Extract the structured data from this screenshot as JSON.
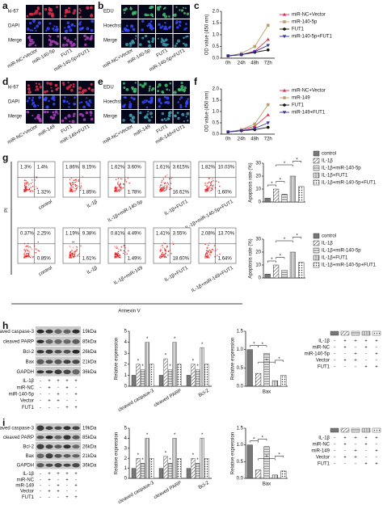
{
  "panel_labels": [
    "a",
    "b",
    "c",
    "d",
    "e",
    "f",
    "g",
    "h",
    "i"
  ],
  "micrographs": [
    {
      "rows": [
        "ki-67",
        "DAPI",
        "Merge"
      ],
      "colors": [
        "#e0304a",
        "#3a4bff",
        "#b040c0"
      ],
      "columns": [
        "miR-NC+Vector",
        "miR-140-5p",
        "FUT1",
        "miR-140-5p+FUT1"
      ]
    },
    {
      "rows": [
        "EDU",
        "Hoechst",
        "Merge"
      ],
      "colors": [
        "#40c070",
        "#3a4bff",
        "#40a0b0"
      ],
      "columns": [
        "miR-NC+Vector",
        "miR-140-5p",
        "FUT1",
        "miR-140-5p+FUT1"
      ]
    },
    {
      "rows": [
        "ki-67",
        "DAPI",
        "Merge"
      ],
      "colors": [
        "#e0304a",
        "#3a4bff",
        "#b040c0"
      ],
      "columns": [
        "miR-NC+Vector",
        "miR-149",
        "FUT1",
        "miR-149+FUT1"
      ]
    },
    {
      "rows": [
        "EDU",
        "Hoechst",
        "Merge"
      ],
      "colors": [
        "#40c070",
        "#3a4bff",
        "#40a0b0"
      ],
      "columns": [
        "miR-NC+Vector",
        "miR-149",
        "FUT1",
        "miR-149+FUT1"
      ]
    }
  ],
  "line_charts": [
    {
      "type": "line",
      "y_label": "OD value (450 nm)",
      "categories": [
        "0h",
        "24h",
        "48h",
        "72h"
      ],
      "ylim": [
        0,
        2
      ],
      "yticks": [
        {
          "value": 0,
          "label": "0.0"
        },
        0.5,
        {
          "value": 1,
          "label": "1.0"
        },
        1.5,
        {
          "value": 2,
          "label": "2.0"
        }
      ],
      "series": [
        {
          "name": "miR-NC+Vector",
          "color": "#e0304a",
          "marker": "triangle",
          "values": [
            0.1,
            0.15,
            0.3,
            0.8
          ]
        },
        {
          "name": "miR-140-5p",
          "color": "#b8a070",
          "marker": "square",
          "values": [
            0.1,
            0.2,
            0.5,
            1.4
          ]
        },
        {
          "name": "FUT1",
          "color": "#111111",
          "marker": "circle",
          "values": [
            0.1,
            0.15,
            0.25,
            0.35
          ]
        },
        {
          "name": "miR-140-5p+FUT1",
          "color": "#3030a0",
          "marker": "triangle-down",
          "values": [
            0.1,
            0.15,
            0.28,
            0.55
          ]
        }
      ]
    },
    {
      "type": "line",
      "y_label": "OD value (450 nm)",
      "categories": [
        "0h",
        "24h",
        "48h",
        "72h"
      ],
      "ylim": [
        0,
        2
      ],
      "yticks": [
        {
          "value": 0,
          "label": "0.0"
        },
        0.5,
        {
          "value": 1,
          "label": "1.0"
        },
        1.5,
        {
          "value": 2,
          "label": "2.0"
        }
      ],
      "series": [
        {
          "name": "miR-NC+Vector",
          "color": "#e0304a",
          "marker": "triangle",
          "values": [
            0.1,
            0.18,
            0.35,
            0.85
          ]
        },
        {
          "name": "miR-149",
          "color": "#b8a070",
          "marker": "square",
          "values": [
            0.1,
            0.2,
            0.45,
            1.3
          ]
        },
        {
          "name": "FUT1",
          "color": "#111111",
          "marker": "circle",
          "values": [
            0.1,
            0.15,
            0.2,
            0.3
          ]
        },
        {
          "name": "miR-149+FUT1",
          "color": "#3030a0",
          "marker": "triangle-down",
          "values": [
            0.1,
            0.15,
            0.25,
            0.5
          ]
        }
      ]
    }
  ],
  "flow": {
    "y_label": "PI",
    "x_label": "Annexin V",
    "rows": [
      [
        {
          "label": "control",
          "quadrants": [
            "1.3%",
            "1.4%",
            "1.32%"
          ]
        },
        {
          "label": "IL-1β",
          "quadrants": [
            "1.86%",
            "8.15%",
            "1.85%"
          ]
        },
        {
          "label": "IL-1β+miR-140-5p",
          "quadrants": [
            "1.62%",
            "3.60%",
            "1.78%"
          ]
        },
        {
          "label": "IL-1β+FUT1",
          "quadrants": [
            "1.61%",
            "3.615%",
            "16.62%"
          ]
        },
        {
          "label": "IL-1β+miR-140-5p+FUT1",
          "quadrants": [
            "1.82%",
            "10.03%",
            "1.60%"
          ]
        }
      ],
      [
        {
          "label": "control",
          "quadrants": [
            "0.37%",
            "2.25%",
            "0.85%"
          ]
        },
        {
          "label": "IL-1β",
          "quadrants": [
            "1.19%",
            "9.38%",
            "1.61%"
          ]
        },
        {
          "label": "IL-1β+miR-149",
          "quadrants": [
            "0.81%",
            "4.49%",
            "1.49%"
          ]
        },
        {
          "label": "IL-1β+FUT1",
          "quadrants": [
            "1.41%",
            "3.55%",
            "18.60%"
          ]
        },
        {
          "label": "IL-1β+miR-149+FUT1",
          "quadrants": [
            "2.08%",
            "13.70%",
            "1.64%"
          ]
        }
      ]
    ]
  },
  "apoptosis_charts": [
    {
      "type": "bar",
      "y_label": "Apoptosis rate (%)",
      "categories": [
        "control",
        "IL-1β",
        "IL-1β+miR-140-5p",
        "IL-1β+FUT1",
        "IL-1β+miR-140-5p+FUT1"
      ],
      "values": [
        3,
        10,
        6,
        20,
        12
      ],
      "fills": [
        "#777777",
        "url(#p-diag)",
        "url(#p-hz)",
        "url(#p-vt)",
        "url(#p-dot)"
      ],
      "ylim": [
        0,
        30
      ],
      "yticks": [
        0,
        10,
        20,
        30
      ],
      "stars": [
        "*",
        "*",
        "*",
        "*"
      ]
    },
    {
      "type": "bar",
      "y_label": "Apoptosis rate (%)",
      "categories": [
        "control",
        "IL-1β",
        "IL-1β+miR-140-5p",
        "IL-1β+FUT1",
        "IL-1β+miR-140-5p+FUT1"
      ],
      "values": [
        3,
        10,
        6,
        20,
        12
      ],
      "fills": [
        "#777777",
        "url(#p-diag)",
        "url(#p-hz)",
        "url(#p-vt)",
        "url(#p-dot)"
      ],
      "ylim": [
        0,
        30
      ],
      "yticks": [
        0,
        10,
        20,
        30
      ],
      "stars": [
        "*",
        "*",
        "*",
        "*"
      ]
    }
  ],
  "blots": [
    {
      "proteins": [
        "cleaved caspase-3",
        "cleaved PARP",
        "Bcl-2",
        "Bax",
        "GAPDH"
      ],
      "sizes": [
        "19kDa",
        "85kDa",
        "26kDa",
        "21kDa",
        "36kDa"
      ],
      "conditions": [
        {
          "name": "IL-1β",
          "signs": [
            "-",
            "+",
            "+",
            "+",
            "+"
          ]
        },
        {
          "name": "miR-NC",
          "signs": [
            "-",
            "+",
            "-",
            "+",
            "-"
          ]
        },
        {
          "name": "miR-140-5p",
          "signs": [
            "-",
            "-",
            "+",
            "-",
            "+"
          ]
        },
        {
          "name": "Vector",
          "signs": [
            "-",
            "+",
            "+",
            "-",
            "-"
          ]
        },
        {
          "name": "FUT1",
          "signs": [
            "-",
            "-",
            "-",
            "+",
            "+"
          ]
        }
      ]
    },
    {
      "proteins": [
        "cleaved caspase-3",
        "cleaved PARP",
        "Bcl-2",
        "Bax",
        "GAPDH"
      ],
      "sizes": [
        "19kDa",
        "85kDa",
        "26kDa",
        "21kDa",
        "36kDa"
      ],
      "conditions": [
        {
          "name": "IL-1β",
          "signs": [
            "-",
            "+",
            "+",
            "+",
            "+"
          ]
        },
        {
          "name": "miR-NC",
          "signs": [
            "-",
            "+",
            "-",
            "+",
            "-"
          ]
        },
        {
          "name": "miR-149",
          "signs": [
            "-",
            "-",
            "+",
            "-",
            "+"
          ]
        },
        {
          "name": "Vector",
          "signs": [
            "-",
            "+",
            "+",
            "-",
            "-"
          ]
        },
        {
          "name": "FUT1",
          "signs": [
            "-",
            "-",
            "-",
            "+",
            "+"
          ]
        }
      ]
    }
  ],
  "expression_charts": [
    {
      "type": "grouped_bar",
      "y_label": "Relative expression",
      "groups": [
        "cleaved caspase-3",
        "cleaved PARP",
        "Bcl-2"
      ],
      "values": [
        [
          1,
          2,
          1.5,
          4,
          2
        ],
        [
          1,
          2.5,
          1.5,
          4,
          2
        ],
        [
          1,
          2,
          1.5,
          3.5,
          2
        ]
      ],
      "fills": [
        "#777777",
        "url(#p-diag)",
        "url(#p-hz)",
        "url(#p-vt)",
        "url(#p-dot)"
      ],
      "ylim": [
        0,
        5
      ],
      "yticks": [
        0,
        1,
        2,
        3,
        4,
        5
      ],
      "stars": [
        "*",
        "*",
        "*"
      ]
    },
    {
      "type": "bar",
      "y_label": "Relative expression",
      "label": "Bax",
      "values": [
        1,
        0.35,
        0.9,
        0.15,
        0.3
      ],
      "fills": [
        "#777777",
        "url(#p-diag)",
        "url(#p-hz)",
        "url(#p-vt)",
        "url(#p-dot)"
      ],
      "ylim": [
        0,
        1.5
      ],
      "yticks": [
        {
          "value": 0,
          "label": "0.0"
        },
        0.5,
        {
          "value": 1,
          "label": "1.0"
        },
        1.5
      ],
      "stars": [
        "*",
        "*",
        "*",
        "*"
      ]
    },
    {
      "type": "grouped_bar",
      "y_label": "Relative expression",
      "groups": [
        "cleaved caspase-3",
        "cleaved PARP",
        "Bcl-2"
      ],
      "values": [
        [
          1,
          2,
          1.5,
          4,
          2
        ],
        [
          1,
          2.2,
          1.5,
          4,
          2
        ],
        [
          1,
          2,
          1.5,
          4,
          2
        ]
      ],
      "fills": [
        "#777777",
        "url(#p-diag)",
        "url(#p-hz)",
        "url(#p-vt)",
        "url(#p-dot)"
      ],
      "ylim": [
        0,
        5
      ],
      "yticks": [
        0,
        1,
        2,
        3,
        4,
        5
      ],
      "stars": [
        "*",
        "*",
        "*"
      ]
    },
    {
      "type": "bar",
      "y_label": "Relative expression",
      "label": "Bax",
      "values": [
        1,
        0.25,
        0.95,
        0.1,
        0.22
      ],
      "fills": [
        "#777777",
        "url(#p-diag)",
        "url(#p-hz)",
        "url(#p-vt)",
        "url(#p-dot)"
      ],
      "ylim": [
        0,
        1.5
      ],
      "yticks": [
        {
          "value": 0,
          "label": "0.0"
        },
        0.5,
        {
          "value": 1,
          "label": "1.0"
        },
        1.5
      ],
      "stars": [
        "*",
        "*",
        "*",
        "*"
      ]
    }
  ]
}
